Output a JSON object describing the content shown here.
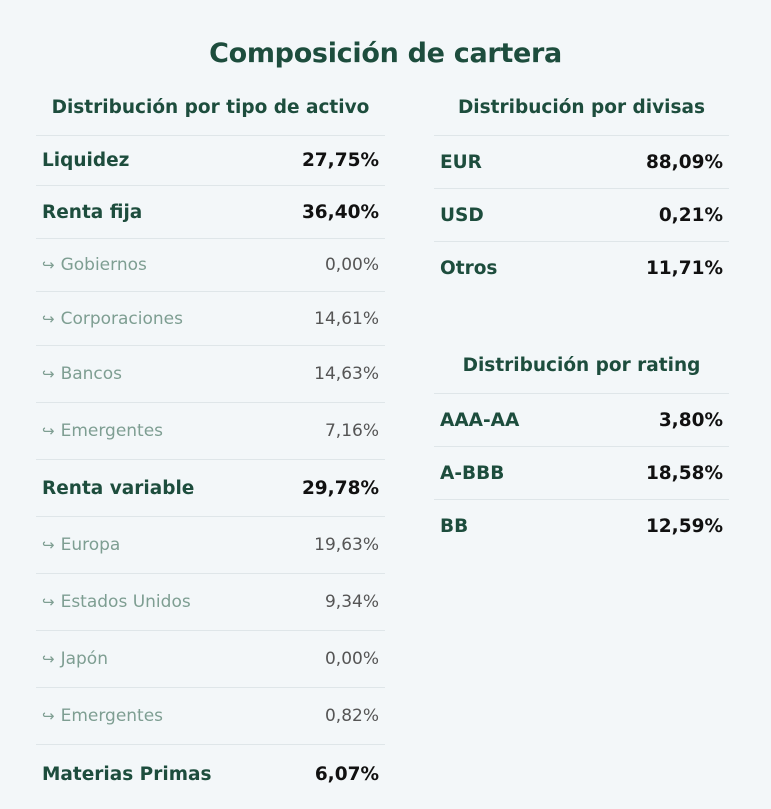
{
  "title": "Composición de cartera",
  "sub_arrow": "↪",
  "asset": {
    "heading": "Distribución por tipo de activo",
    "rows": [
      {
        "label": "Liquidez",
        "value": "27,75%",
        "sub": false
      },
      {
        "label": "Renta fija",
        "value": "36,40%",
        "sub": false
      },
      {
        "label": "Gobiernos",
        "value": "0,00%",
        "sub": true
      },
      {
        "label": "Corporaciones",
        "value": "14,61%",
        "sub": true
      },
      {
        "label": "Bancos",
        "value": "14,63%",
        "sub": true
      },
      {
        "label": "Emergentes",
        "value": "7,16%",
        "sub": true
      },
      {
        "label": "Renta variable",
        "value": "29,78%",
        "sub": false
      },
      {
        "label": "Europa",
        "value": "19,63%",
        "sub": true
      },
      {
        "label": "Estados Unidos",
        "value": "9,34%",
        "sub": true
      },
      {
        "label": "Japón",
        "value": "0,00%",
        "sub": true
      },
      {
        "label": "Emergentes",
        "value": "0,82%",
        "sub": true
      },
      {
        "label": "Materias Primas",
        "value": "6,07%",
        "sub": false
      }
    ]
  },
  "currency": {
    "heading": "Distribución por divisas",
    "rows": [
      {
        "label": "EUR",
        "value": "88,09%"
      },
      {
        "label": "USD",
        "value": "0,21%"
      },
      {
        "label": "Otros",
        "value": "11,71%"
      }
    ]
  },
  "rating": {
    "heading": "Distribución por rating",
    "rows": [
      {
        "label": "AAA-AA",
        "value": "3,80%"
      },
      {
        "label": "A-BBB",
        "value": "18,58%"
      },
      {
        "label": "BB",
        "value": "12,59%"
      }
    ]
  }
}
